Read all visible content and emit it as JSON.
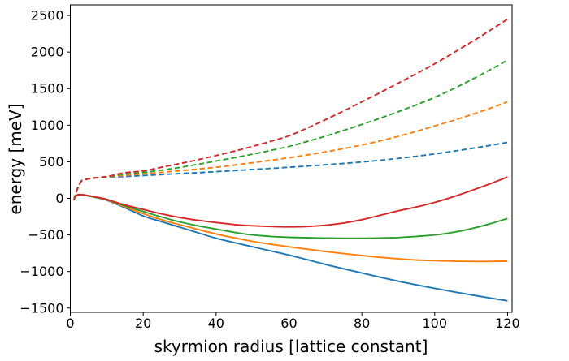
{
  "figure": {
    "background_color": "#ffffff",
    "axis_color": "#000000",
    "title": ""
  },
  "chart_data": {
    "type": "line",
    "title": "",
    "xlabel": "skyrmion radius [lattice constant]",
    "ylabel": "energy [meV]",
    "grid": false,
    "legend": "none",
    "xlim": [
      0,
      121.24
    ],
    "ylim": [
      -1558,
      2645
    ],
    "xticks": [
      0,
      20,
      40,
      60,
      80,
      100,
      120
    ],
    "xtick_labels": [
      "0",
      "20",
      "40",
      "60",
      "80",
      "100",
      "120"
    ],
    "yticks": [
      -1500,
      -1000,
      -500,
      0,
      500,
      1000,
      1500,
      2000,
      2500
    ],
    "ytick_labels": [
      "−1500",
      "−1000",
      "−500",
      "0",
      "500",
      "1000",
      "1500",
      "2000",
      "2500"
    ],
    "x": [
      1,
      2,
      3,
      4,
      6,
      8,
      10,
      15,
      20,
      25,
      30,
      35,
      40,
      45,
      50,
      55,
      60,
      65,
      70,
      75,
      80,
      85,
      90,
      95,
      100,
      105,
      110,
      115,
      120
    ],
    "series": [
      {
        "name": "solid-blue",
        "style": "solid",
        "color": "#1f77b4",
        "values": [
          10,
          48,
          50,
          42,
          22,
          0,
          -25,
          -128,
          -240,
          -318,
          -394,
          -470,
          -545,
          -605,
          -662,
          -718,
          -775,
          -838,
          -903,
          -962,
          -1020,
          -1078,
          -1133,
          -1183,
          -1230,
          -1276,
          -1320,
          -1361,
          -1400
        ]
      },
      {
        "name": "dashed-blue",
        "style": "dashed",
        "color": "#1f77b4",
        "values": [
          -20,
          140,
          235,
          258,
          274,
          284,
          292,
          298,
          312,
          325,
          338,
          351,
          365,
          379,
          394,
          409,
          425,
          441,
          459,
          477,
          497,
          520,
          546,
          575,
          608,
          643,
          681,
          722,
          765
        ]
      },
      {
        "name": "solid-orange",
        "style": "solid",
        "color": "#ff7f0e",
        "values": [
          10,
          48,
          50,
          42,
          24,
          3,
          -22,
          -115,
          -210,
          -292,
          -360,
          -425,
          -487,
          -540,
          -588,
          -628,
          -662,
          -695,
          -726,
          -755,
          -782,
          -806,
          -827,
          -843,
          -852,
          -858,
          -862,
          -862,
          -858
        ]
      },
      {
        "name": "dashed-orange",
        "style": "dashed",
        "color": "#ff7f0e",
        "values": [
          -22,
          138,
          234,
          257,
          274,
          285,
          294,
          315,
          335,
          355,
          377,
          400,
          425,
          455,
          487,
          520,
          555,
          593,
          635,
          680,
          730,
          785,
          848,
          916,
          990,
          1064,
          1143,
          1228,
          1320
        ]
      },
      {
        "name": "solid-green",
        "style": "solid",
        "color": "#2ca02c",
        "values": [
          10,
          48,
          50,
          43,
          26,
          6,
          -18,
          -102,
          -180,
          -255,
          -322,
          -375,
          -420,
          -465,
          -500,
          -520,
          -532,
          -538,
          -543,
          -545,
          -545,
          -542,
          -535,
          -520,
          -500,
          -465,
          -415,
          -350,
          -275
        ]
      },
      {
        "name": "dashed-green",
        "style": "dashed",
        "color": "#2ca02c",
        "values": [
          -24,
          136,
          233,
          257,
          275,
          286,
          296,
          332,
          355,
          385,
          423,
          465,
          510,
          555,
          603,
          655,
          710,
          777,
          850,
          928,
          1010,
          1095,
          1185,
          1280,
          1380,
          1495,
          1620,
          1752,
          1890
        ]
      },
      {
        "name": "solid-red",
        "style": "solid",
        "color": "#d62728",
        "values": [
          10,
          48,
          51,
          44,
          28,
          9,
          -14,
          -90,
          -152,
          -212,
          -262,
          -300,
          -330,
          -358,
          -375,
          -385,
          -390,
          -385,
          -368,
          -337,
          -292,
          -232,
          -170,
          -118,
          -55,
          20,
          105,
          195,
          292
        ]
      },
      {
        "name": "dashed-red",
        "style": "dashed",
        "color": "#d62728",
        "values": [
          -26,
          134,
          232,
          257,
          276,
          288,
          298,
          350,
          375,
          425,
          475,
          528,
          585,
          645,
          710,
          780,
          855,
          960,
          1075,
          1195,
          1320,
          1445,
          1575,
          1705,
          1840,
          1985,
          2135,
          2290,
          2450
        ]
      }
    ]
  }
}
